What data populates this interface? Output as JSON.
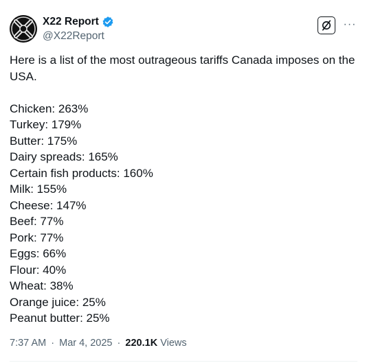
{
  "author": {
    "display_name": "X22 Report",
    "handle": "@X22Report",
    "verified_color": "#1d9bf0"
  },
  "tweet": {
    "intro": "Here is a list of the most outrageous tariffs Canada imposes on the USA.",
    "items": [
      "Chicken: 263%",
      "Turkey: 179%",
      "Butter: 175%",
      "Dairy spreads: 165%",
      "Certain fish products: 160%",
      "Milk: 155%",
      "Cheese: 147%",
      "Beef: 77%",
      "Pork: 77%",
      "Eggs: 66%",
      "Flour: 40%",
      "Wheat: 38%",
      "Orange juice: 25%",
      "Peanut butter: 25%"
    ]
  },
  "meta": {
    "time": "7:37 AM",
    "date": "Mar 4, 2025",
    "separator": "·",
    "views_count": "220.1K",
    "views_label": "Views"
  },
  "actions": {
    "more_label": "···",
    "grok_icon": "grok-icon"
  }
}
